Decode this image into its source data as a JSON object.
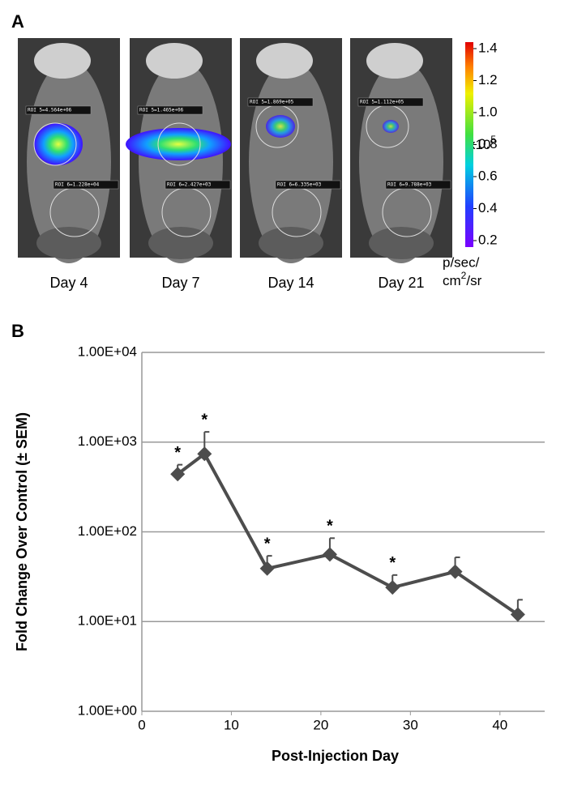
{
  "panel_a": {
    "label": "A",
    "images": [
      {
        "caption": "Day 4",
        "roi_top": "ROI 5=4.564e+06",
        "roi_bottom": "ROI 6=1.228e+04"
      },
      {
        "caption": "Day 7",
        "roi_top": "ROI 5=1.465e+06",
        "roi_bottom": "ROI 6=2.427e+03"
      },
      {
        "caption": "Day 14",
        "roi_top": "ROI 5=1.869e+05",
        "roi_bottom": "ROI 6=6.335e+03"
      },
      {
        "caption": "Day 21",
        "roi_top": "ROI 5=1.112e+05",
        "roi_bottom": "ROI 6=9.788e+03"
      }
    ],
    "colorbar": {
      "clim": [
        0.2,
        1.4
      ],
      "ticks": [
        1.4,
        1.2,
        {
          "value": 1,
          "label": "1.0"
        },
        0.8,
        0.6,
        0.4,
        0.2
      ],
      "multiplier": "x10",
      "exponent": "5",
      "units_line1": "p/sec/",
      "units_line2": [
        "cm",
        "2",
        "/sr"
      ]
    }
  },
  "chart_data": {
    "type": "line",
    "panel_label": "B",
    "ylabel": "Fold Change Over Control (± SEM)",
    "xlabel": "Post-Injection Day",
    "x": [
      4,
      7,
      14,
      21,
      28,
      35,
      42
    ],
    "values": [
      440,
      740,
      39,
      56,
      24,
      36,
      12
    ],
    "errors": [
      120,
      560,
      15,
      29,
      9,
      16,
      5.5
    ],
    "color": "#4d4d4d",
    "xlim": [
      0,
      45
    ],
    "xticks": [
      0,
      10,
      20,
      30,
      40
    ],
    "ylim": [
      1,
      10000
    ],
    "log_y": true,
    "grid": true,
    "yticks": [
      {
        "value": 1,
        "label": "1.00E+00"
      },
      {
        "value": 10,
        "label": "1.00E+01"
      },
      {
        "value": 100,
        "label": "1.00E+02"
      },
      {
        "value": 1000,
        "label": "1.00E+03"
      },
      {
        "value": 10000,
        "label": "1.00E+04"
      }
    ],
    "annotations": [
      {
        "text": "*",
        "x": 4
      },
      {
        "text": "*",
        "x": 7
      },
      {
        "text": "*",
        "x": 14
      },
      {
        "text": "*",
        "x": 21
      },
      {
        "text": "*",
        "x": 28
      }
    ]
  }
}
